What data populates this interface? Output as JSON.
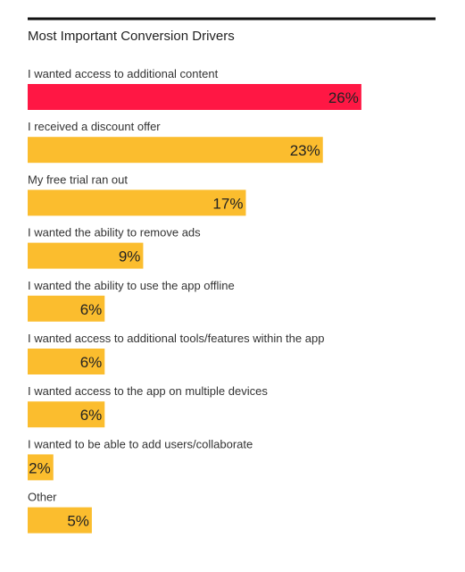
{
  "chart_data": {
    "type": "bar",
    "orientation": "horizontal",
    "title": "Most Important Conversion Drivers",
    "categories": [
      "I wanted access to additional content",
      "I received a discount offer",
      "My free trial ran out",
      "I wanted the ability to remove ads",
      "I wanted the ability to use the app offline",
      "I wanted access to additional tools/features within the app",
      "I wanted access to the app on multiple devices",
      "I wanted to be able to add users/collaborate",
      "Other"
    ],
    "values": [
      26,
      23,
      17,
      9,
      6,
      6,
      6,
      2,
      5
    ],
    "value_labels": [
      "26%",
      "23%",
      "17%",
      "9%",
      "6%",
      "6%",
      "6%",
      "2%",
      "5%"
    ],
    "unit": "%",
    "highlight_index": 0,
    "colors": {
      "highlight": "#ff1744",
      "bar": "#fbbd2e",
      "rule": "#111111"
    },
    "legend": "none",
    "grid": false
  }
}
